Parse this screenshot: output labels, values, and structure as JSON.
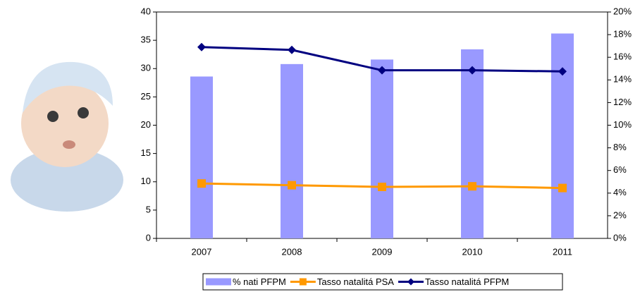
{
  "chart_data": {
    "type": "bar-line",
    "categories": [
      "2007",
      "2008",
      "2009",
      "2010",
      "2011"
    ],
    "series": [
      {
        "name": "% nati PFPM",
        "type": "bar",
        "axis": "y2",
        "color": "#9999ff",
        "values": [
          14.3,
          15.4,
          15.8,
          16.7,
          18.1
        ]
      },
      {
        "name": "Tasso natalitá PSA",
        "type": "line",
        "marker": "square",
        "color": "#ff9900",
        "values": [
          9.7,
          9.4,
          9.1,
          9.2,
          8.9
        ]
      },
      {
        "name": "Tasso natalitá PFPM",
        "type": "line",
        "marker": "diamond",
        "color": "#000080",
        "values": [
          33.8,
          33.3,
          29.7,
          29.7,
          29.5
        ]
      }
    ],
    "ylim": [
      0,
      40
    ],
    "yticks": [
      0,
      5,
      10,
      15,
      20,
      25,
      30,
      35,
      40
    ],
    "y2lim": [
      0,
      20
    ],
    "y2ticks": [
      {
        "value": 0,
        "label": "0%"
      },
      {
        "value": 2,
        "label": "2%"
      },
      {
        "value": 4,
        "label": "4%"
      },
      {
        "value": 6,
        "label": "6%"
      },
      {
        "value": 8,
        "label": "8%"
      },
      {
        "value": 10,
        "label": "10%"
      },
      {
        "value": 12,
        "label": "12%"
      },
      {
        "value": 14,
        "label": "14%"
      },
      {
        "value": 16,
        "label": "16%"
      },
      {
        "value": 18,
        "label": "18%"
      },
      {
        "value": 20,
        "label": "20%"
      }
    ],
    "legend": "bottom"
  }
}
